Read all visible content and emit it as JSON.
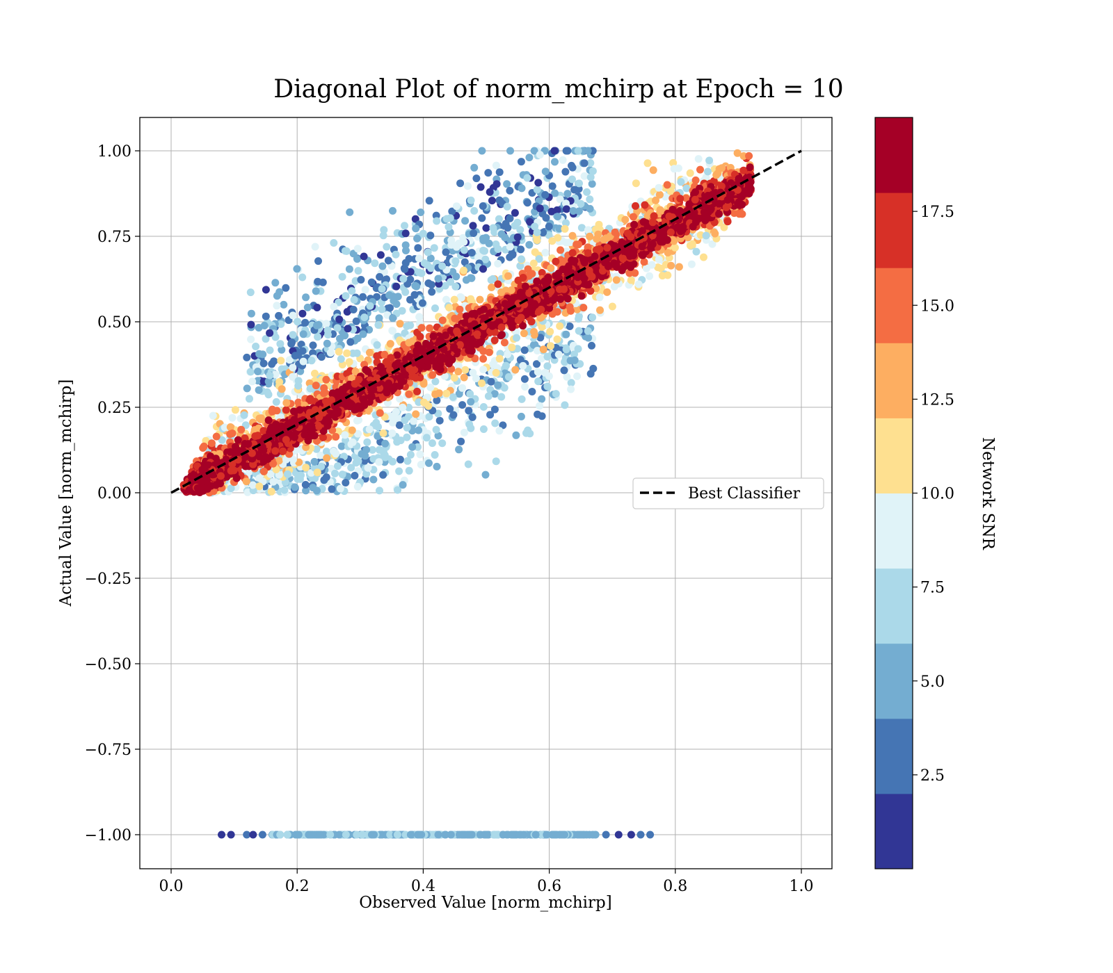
{
  "chart_data": {
    "type": "scatter",
    "title": "Diagonal Plot of norm_mchirp at Epoch = 10",
    "xlabel": "Observed Value [norm_mchirp]",
    "ylabel": "Actual Value [norm_mchirp]",
    "xlim": [
      -0.05,
      1.05
    ],
    "ylim": [
      -1.1,
      1.1
    ],
    "xticks": [
      "0.0",
      "0.2",
      "0.4",
      "0.6",
      "0.8",
      "1.0"
    ],
    "xtick_values": [
      0.0,
      0.2,
      0.4,
      0.6,
      0.8,
      1.0
    ],
    "yticks": [
      "−1.00",
      "−0.75",
      "−0.50",
      "−0.25",
      "0.00",
      "0.25",
      "0.50",
      "0.75",
      "1.00"
    ],
    "ytick_values": [
      -1.0,
      -0.75,
      -0.5,
      -0.25,
      0.0,
      0.25,
      0.5,
      0.75,
      1.0
    ],
    "grid": true,
    "legend": {
      "label": "Best Classifier",
      "placement": "center-right"
    },
    "reference_line": {
      "name": "Best Classifier",
      "x": [
        0.0,
        1.0
      ],
      "y": [
        0.0,
        1.0
      ],
      "style": "dashed",
      "color": "#000000"
    },
    "colorbar": {
      "label": "Network SNR",
      "range": [
        0,
        20
      ],
      "ticks": [
        "2.5",
        "5.0",
        "7.5",
        "10.0",
        "12.5",
        "15.0",
        "17.5"
      ],
      "tick_values": [
        2.5,
        5.0,
        7.5,
        10.0,
        12.5,
        15.0,
        17.5
      ],
      "colors": [
        "#313695",
        "#4575b4",
        "#74add1",
        "#abd9e9",
        "#e0f3f8",
        "#fee090",
        "#fdae61",
        "#f46d43",
        "#d73027",
        "#a50026"
      ]
    },
    "point_groups": [
      {
        "snr_band": "17.5-20",
        "description_values": {
          "x_range": [
            0.02,
            0.92
          ],
          "y_offset_range": [
            -0.08,
            0.08
          ]
        }
      },
      {
        "snr_band": "12.5-17.5",
        "description_values": {
          "x_range": [
            0.03,
            0.92
          ],
          "y_offset_range": [
            -0.14,
            0.14
          ]
        }
      },
      {
        "snr_band": "7.5-12.5",
        "description_values": {
          "x_range": [
            0.05,
            0.88
          ],
          "y_offset_range": [
            -0.35,
            0.35
          ]
        }
      },
      {
        "snr_band": "0-7.5",
        "description_values": {
          "x_range": [
            0.08,
            0.72
          ],
          "y_offset_range": [
            -0.45,
            0.62
          ]
        }
      },
      {
        "snr_band": "0-7.5",
        "description_values": {
          "x_range": [
            0.08,
            0.76
          ],
          "y": -1.0
        }
      }
    ]
  }
}
